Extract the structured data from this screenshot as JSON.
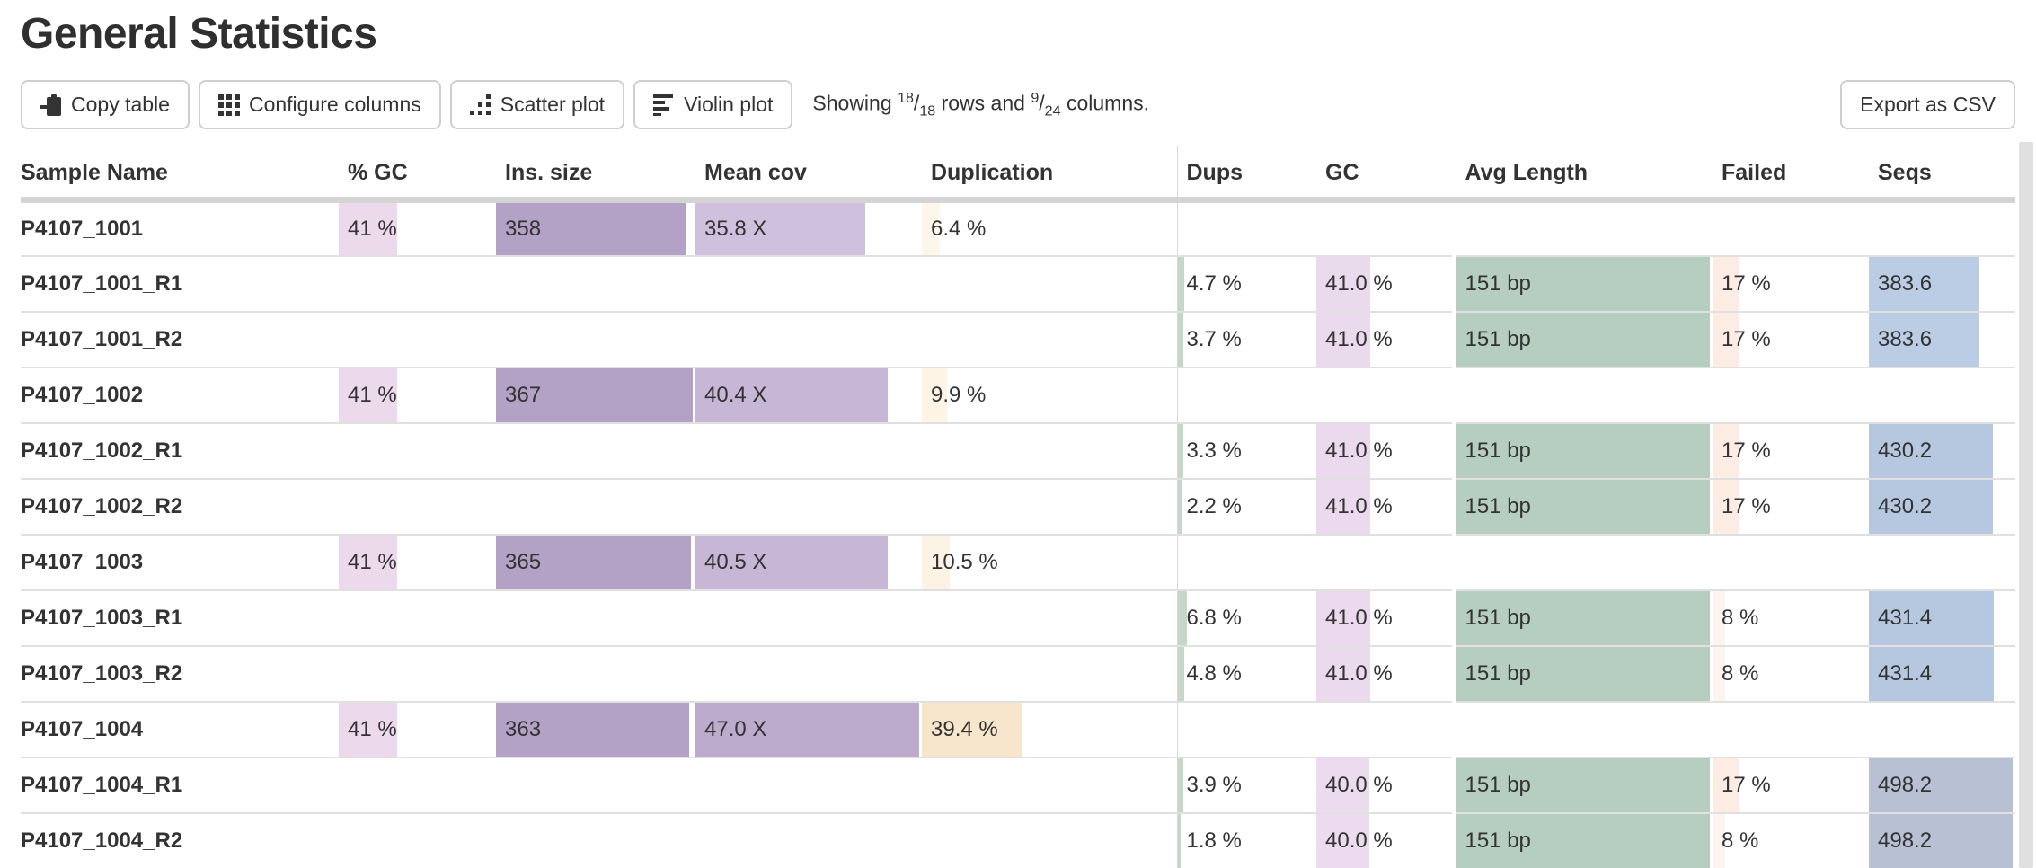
{
  "page": {
    "title": "General Statistics"
  },
  "toolbar": {
    "buttons": {
      "copy": {
        "label": "Copy table",
        "icon": "clipboard-icon"
      },
      "configure": {
        "label": "Configure columns",
        "icon": "grid-icon"
      },
      "scatter": {
        "label": "Scatter plot",
        "icon": "scatter-icon"
      },
      "violin": {
        "label": "Violin plot",
        "icon": "violin-icon"
      }
    },
    "showing": {
      "prefix": "Showing",
      "rows_shown": "18",
      "rows_total": "18",
      "middle": "rows and",
      "cols_shown": "9",
      "cols_total": "24",
      "suffix": "columns."
    },
    "export_label": "Export as CSV"
  },
  "colors": {
    "pct_gc_bar": "#ecd9ec",
    "ins_size_bar": "#b3a2c5",
    "dups_bar": "#c5d8c7",
    "gc_bar": "#ebdaed",
    "avg_length_bar": "#b5cec0",
    "row_border": "#e0e0e0",
    "header_underline": "#d4d4d4",
    "scrollbar": "#e0e0e0"
  },
  "table": {
    "columns": [
      {
        "id": "sample",
        "label": "Sample Name"
      },
      {
        "id": "pct_gc",
        "label": "% GC"
      },
      {
        "id": "ins_size",
        "label": "Ins. size"
      },
      {
        "id": "mean_cov",
        "label": "Mean cov"
      },
      {
        "id": "duplication",
        "label": "Duplication"
      },
      {
        "id": "dups",
        "label": "Dups"
      },
      {
        "id": "gc",
        "label": "GC"
      },
      {
        "id": "avg_length",
        "label": "Avg Length"
      },
      {
        "id": "failed",
        "label": "Failed"
      },
      {
        "id": "seqs",
        "label": "Seqs"
      }
    ],
    "rows": [
      {
        "sample": "P4107_1001",
        "cells": {
          "pct_gc": {
            "text": "41 %",
            "pct": 38,
            "color": "#ecd9ec"
          },
          "ins_size": {
            "text": "358",
            "pct": 97,
            "color": "#b3a2c5"
          },
          "mean_cov": {
            "text": "35.8 X",
            "pct": 76,
            "color": "#cfc1de"
          },
          "duplication": {
            "text": "6.4 %",
            "pct": 7,
            "color": "#fdf6ea"
          }
        }
      },
      {
        "sample": "P4107_1001_R1",
        "cells": {
          "dups": {
            "text": "4.7 %",
            "pct": 5,
            "color": "#c5d8c7"
          },
          "gc": {
            "text": "41.0 %",
            "pct": 41,
            "color": "#ebdaed"
          },
          "avg_length": {
            "text": "151 bp",
            "pct": 100,
            "color": "#b5cec0"
          },
          "failed": {
            "text": "17 %",
            "pct": 17,
            "color": "#fcece4"
          },
          "seqs": {
            "text": "383.6",
            "pct": 77,
            "color": "#bacde5"
          }
        }
      },
      {
        "sample": "P4107_1001_R2",
        "cells": {
          "dups": {
            "text": "3.7 %",
            "pct": 4,
            "color": "#c5d8c7"
          },
          "gc": {
            "text": "41.0 %",
            "pct": 41,
            "color": "#ebdaed"
          },
          "avg_length": {
            "text": "151 bp",
            "pct": 100,
            "color": "#b5cec0"
          },
          "failed": {
            "text": "17 %",
            "pct": 17,
            "color": "#fcece4"
          },
          "seqs": {
            "text": "383.6",
            "pct": 77,
            "color": "#bacde5"
          }
        }
      },
      {
        "sample": "P4107_1002",
        "cells": {
          "pct_gc": {
            "text": "41 %",
            "pct": 38,
            "color": "#ecd9ec"
          },
          "ins_size": {
            "text": "367",
            "pct": 100,
            "color": "#b3a2c5"
          },
          "mean_cov": {
            "text": "40.4 X",
            "pct": 86,
            "color": "#c7b6d6"
          },
          "duplication": {
            "text": "9.9 %",
            "pct": 10,
            "color": "#fdf4e6"
          }
        }
      },
      {
        "sample": "P4107_1002_R1",
        "cells": {
          "dups": {
            "text": "3.3 %",
            "pct": 4,
            "color": "#c5d8c7"
          },
          "gc": {
            "text": "41.0 %",
            "pct": 41,
            "color": "#ebdaed"
          },
          "avg_length": {
            "text": "151 bp",
            "pct": 100,
            "color": "#b5cec0"
          },
          "failed": {
            "text": "17 %",
            "pct": 17,
            "color": "#fcece4"
          },
          "seqs": {
            "text": "430.2",
            "pct": 86,
            "color": "#b5c8e0"
          }
        }
      },
      {
        "sample": "P4107_1002_R2",
        "cells": {
          "dups": {
            "text": "2.2 %",
            "pct": 3,
            "color": "#c5d8c7"
          },
          "gc": {
            "text": "41.0 %",
            "pct": 41,
            "color": "#ebdaed"
          },
          "avg_length": {
            "text": "151 bp",
            "pct": 100,
            "color": "#b5cec0"
          },
          "failed": {
            "text": "17 %",
            "pct": 17,
            "color": "#fcece4"
          },
          "seqs": {
            "text": "430.2",
            "pct": 86,
            "color": "#b5c8e0"
          }
        }
      },
      {
        "sample": "P4107_1003",
        "cells": {
          "pct_gc": {
            "text": "41 %",
            "pct": 38,
            "color": "#ecd9ec"
          },
          "ins_size": {
            "text": "365",
            "pct": 99,
            "color": "#b3a2c5"
          },
          "mean_cov": {
            "text": "40.5 X",
            "pct": 86,
            "color": "#c7b6d6"
          },
          "duplication": {
            "text": "10.5 %",
            "pct": 11,
            "color": "#fcf3e4"
          }
        }
      },
      {
        "sample": "P4107_1003_R1",
        "cells": {
          "dups": {
            "text": "6.8 %",
            "pct": 7,
            "color": "#c5d8c7"
          },
          "gc": {
            "text": "41.0 %",
            "pct": 41,
            "color": "#ebdaed"
          },
          "avg_length": {
            "text": "151 bp",
            "pct": 100,
            "color": "#b5cec0"
          },
          "failed": {
            "text": "8 %",
            "pct": 8,
            "color": "#fdf4ef"
          },
          "seqs": {
            "text": "431.4",
            "pct": 87,
            "color": "#b5c8e0"
          }
        }
      },
      {
        "sample": "P4107_1003_R2",
        "cells": {
          "dups": {
            "text": "4.8 %",
            "pct": 5,
            "color": "#c5d8c7"
          },
          "gc": {
            "text": "41.0 %",
            "pct": 41,
            "color": "#ebdaed"
          },
          "avg_length": {
            "text": "151 bp",
            "pct": 100,
            "color": "#b5cec0"
          },
          "failed": {
            "text": "8 %",
            "pct": 8,
            "color": "#fdf4ef"
          },
          "seqs": {
            "text": "431.4",
            "pct": 87,
            "color": "#b5c8e0"
          }
        }
      },
      {
        "sample": "P4107_1004",
        "cells": {
          "pct_gc": {
            "text": "41 %",
            "pct": 38,
            "color": "#ecd9ec"
          },
          "ins_size": {
            "text": "363",
            "pct": 98,
            "color": "#b3a2c5"
          },
          "mean_cov": {
            "text": "47.0 X",
            "pct": 100,
            "color": "#bcabcd"
          },
          "duplication": {
            "text": "39.4 %",
            "pct": 40,
            "color": "#f7e5cc"
          }
        }
      },
      {
        "sample": "P4107_1004_R1",
        "cells": {
          "dups": {
            "text": "3.9 %",
            "pct": 4,
            "color": "#c5d8c7"
          },
          "gc": {
            "text": "40.0 %",
            "pct": 40,
            "color": "#ecdbee"
          },
          "avg_length": {
            "text": "151 bp",
            "pct": 100,
            "color": "#b5cec0"
          },
          "failed": {
            "text": "17 %",
            "pct": 17,
            "color": "#fcece4"
          },
          "seqs": {
            "text": "498.2",
            "pct": 100,
            "color": "#b7c1d3"
          }
        }
      },
      {
        "sample": "P4107_1004_R2",
        "cells": {
          "dups": {
            "text": "1.8 %",
            "pct": 2,
            "color": "#c5d8c7"
          },
          "gc": {
            "text": "40.0 %",
            "pct": 40,
            "color": "#ecdbee"
          },
          "avg_length": {
            "text": "151 bp",
            "pct": 100,
            "color": "#b5cec0"
          },
          "failed": {
            "text": "8 %",
            "pct": 8,
            "color": "#fdf4ef"
          },
          "seqs": {
            "text": "498.2",
            "pct": 100,
            "color": "#b7c1d3"
          }
        }
      }
    ]
  }
}
